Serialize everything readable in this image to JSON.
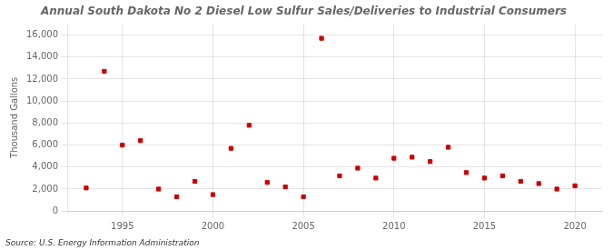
{
  "chart_data": {
    "type": "scatter",
    "title": "Annual South Dakota No 2 Diesel Low Sulfur Sales/Deliveries to Industrial Consumers",
    "ylabel": "Thousand Gallons",
    "source": "Source: U.S. Energy Information Administration",
    "color": "#cc0000",
    "marker": "square",
    "grid": true,
    "xlim": [
      1992,
      2021.5
    ],
    "xticks": [
      1995,
      2000,
      2005,
      2010,
      2015,
      2020
    ],
    "ylim": [
      0,
      17000
    ],
    "yticks": [
      0,
      {
        "value": 2000,
        "label": "2,000"
      },
      {
        "value": 4000,
        "label": "4,000"
      },
      {
        "value": 6000,
        "label": "6,000"
      },
      {
        "value": 8000,
        "label": "8,000"
      },
      {
        "value": 10000,
        "label": "10,000"
      },
      {
        "value": 12000,
        "label": "12,000"
      },
      {
        "value": 14000,
        "label": "14,000"
      },
      {
        "value": 16000,
        "label": "16,000"
      }
    ],
    "x": [
      1993,
      1994,
      1995,
      1996,
      1997,
      1998,
      1999,
      2000,
      2001,
      2002,
      2003,
      2004,
      2005,
      2006,
      2007,
      2008,
      2009,
      2010,
      2011,
      2012,
      2013,
      2014,
      2015,
      2016,
      2017,
      2018,
      2019,
      2020
    ],
    "values": [
      2100,
      12700,
      6000,
      6400,
      2000,
      1300,
      2700,
      1500,
      5700,
      7800,
      2600,
      2200,
      1300,
      15700,
      3200,
      3900,
      3000,
      4800,
      4900,
      4500,
      5800,
      3500,
      3000,
      3200,
      2700,
      2500,
      2000,
      2300
    ]
  }
}
